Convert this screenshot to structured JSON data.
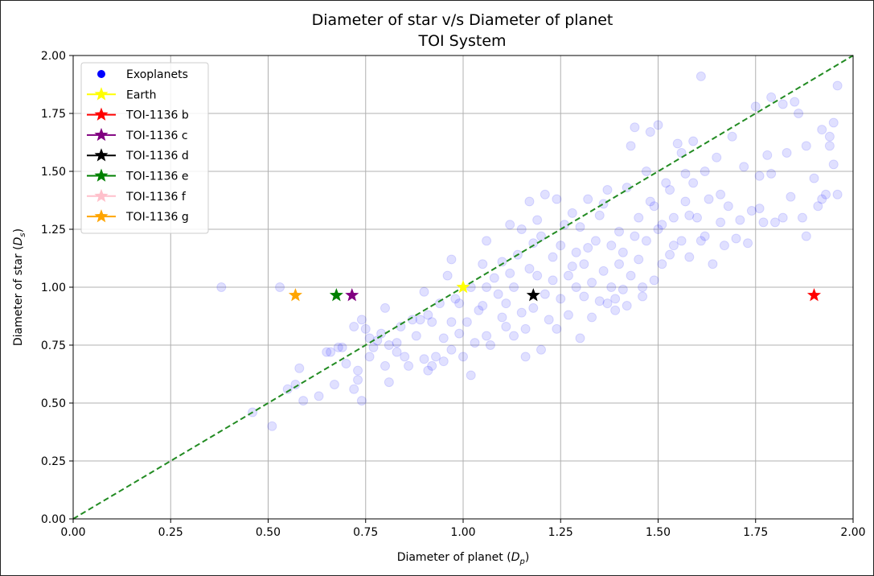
{
  "chart_data": {
    "type": "scatter",
    "title": "Diameter of star v/s Diameter of planet",
    "subtitle": "TOI System",
    "xlabel": "Diameter of planet ",
    "xlabel_symbol": "D",
    "xlabel_sub": "p",
    "ylabel": "Diameter of star ",
    "ylabel_symbol": "D",
    "ylabel_sub": "s",
    "xlim": [
      0,
      2
    ],
    "ylim": [
      0,
      2
    ],
    "xticks": [
      "0.00",
      "0.25",
      "0.50",
      "0.75",
      "1.00",
      "1.25",
      "1.50",
      "1.75",
      "2.00"
    ],
    "yticks": [
      "0.00",
      "0.25",
      "0.50",
      "0.75",
      "1.00",
      "1.25",
      "1.50",
      "1.75",
      "2.00"
    ],
    "grid": true,
    "legend_position": "top-left",
    "reference_line": {
      "x": [
        0,
        2
      ],
      "y": [
        0,
        2
      ],
      "color": "#228b22",
      "style": "dashed"
    },
    "series": [
      {
        "name": "Exoplanets",
        "marker": "circle",
        "color": "#0000ff",
        "opacity": 0.12,
        "points": [
          [
            0.38,
            1.0
          ],
          [
            0.46,
            0.46
          ],
          [
            0.51,
            0.4
          ],
          [
            0.53,
            1.0
          ],
          [
            0.55,
            0.56
          ],
          [
            0.57,
            0.58
          ],
          [
            0.58,
            0.65
          ],
          [
            0.59,
            0.51
          ],
          [
            0.63,
            0.53
          ],
          [
            0.65,
            0.72
          ],
          [
            0.66,
            0.72
          ],
          [
            0.67,
            0.58
          ],
          [
            0.68,
            0.74
          ],
          [
            0.69,
            0.74
          ],
          [
            0.7,
            0.67
          ],
          [
            0.72,
            0.83
          ],
          [
            0.72,
            0.56
          ],
          [
            0.73,
            0.64
          ],
          [
            0.73,
            0.6
          ],
          [
            0.74,
            0.51
          ],
          [
            0.74,
            0.86
          ],
          [
            0.75,
            0.82
          ],
          [
            0.76,
            0.7
          ],
          [
            0.76,
            0.78
          ],
          [
            0.77,
            0.74
          ],
          [
            0.78,
            0.77
          ],
          [
            0.79,
            0.8
          ],
          [
            0.8,
            0.91
          ],
          [
            0.8,
            0.66
          ],
          [
            0.81,
            0.59
          ],
          [
            0.81,
            0.75
          ],
          [
            0.83,
            0.76
          ],
          [
            0.83,
            0.72
          ],
          [
            0.84,
            0.83
          ],
          [
            0.85,
            0.7
          ],
          [
            0.86,
            0.66
          ],
          [
            0.87,
            0.86
          ],
          [
            0.88,
            0.79
          ],
          [
            0.89,
            0.86
          ],
          [
            0.9,
            0.69
          ],
          [
            0.91,
            0.64
          ],
          [
            0.91,
            0.88
          ],
          [
            0.92,
            0.85
          ],
          [
            0.93,
            0.7
          ],
          [
            0.94,
            0.93
          ],
          [
            0.95,
            0.78
          ],
          [
            0.95,
            0.68
          ],
          [
            0.96,
            1.05
          ],
          [
            0.97,
            0.73
          ],
          [
            0.97,
            0.85
          ],
          [
            0.98,
            0.95
          ],
          [
            0.99,
            0.8
          ],
          [
            0.99,
            0.93
          ],
          [
            1.0,
            0.7
          ],
          [
            1.01,
            0.85
          ],
          [
            1.02,
            1.0
          ],
          [
            1.03,
            0.76
          ],
          [
            1.04,
            0.9
          ],
          [
            1.05,
            1.1
          ],
          [
            1.05,
            0.92
          ],
          [
            1.06,
            0.79
          ],
          [
            1.06,
            1.2
          ],
          [
            1.07,
            0.75
          ],
          [
            1.08,
            1.04
          ],
          [
            1.09,
            0.97
          ],
          [
            1.1,
            0.87
          ],
          [
            1.1,
            1.11
          ],
          [
            1.11,
            0.83
          ],
          [
            1.11,
            0.93
          ],
          [
            1.12,
            1.27
          ],
          [
            1.13,
            1.0
          ],
          [
            1.13,
            0.79
          ],
          [
            1.14,
            1.14
          ],
          [
            1.15,
            0.89
          ],
          [
            1.15,
            1.25
          ],
          [
            1.16,
            0.82
          ],
          [
            1.17,
            1.08
          ],
          [
            1.17,
            1.37
          ],
          [
            1.18,
            0.91
          ],
          [
            1.18,
            1.19
          ],
          [
            1.19,
            1.05
          ],
          [
            1.2,
            0.73
          ],
          [
            1.2,
            1.22
          ],
          [
            1.21,
            0.97
          ],
          [
            1.21,
            1.4
          ],
          [
            1.22,
            0.86
          ],
          [
            1.23,
            1.13
          ],
          [
            1.23,
            1.03
          ],
          [
            1.24,
            1.38
          ],
          [
            1.25,
            0.95
          ],
          [
            1.25,
            1.18
          ],
          [
            1.26,
            1.27
          ],
          [
            1.27,
            0.88
          ],
          [
            1.27,
            1.05
          ],
          [
            1.28,
            1.32
          ],
          [
            1.29,
            1.0
          ],
          [
            1.29,
            1.15
          ],
          [
            1.3,
            0.78
          ],
          [
            1.3,
            1.26
          ],
          [
            1.31,
            0.96
          ],
          [
            1.31,
            1.1
          ],
          [
            1.32,
            1.38
          ],
          [
            1.33,
            1.02
          ],
          [
            1.33,
            0.87
          ],
          [
            1.34,
            1.2
          ],
          [
            1.35,
            0.94
          ],
          [
            1.35,
            1.31
          ],
          [
            1.36,
            1.07
          ],
          [
            1.37,
            0.93
          ],
          [
            1.37,
            1.42
          ],
          [
            1.38,
            1.0
          ],
          [
            1.38,
            1.18
          ],
          [
            1.39,
            0.9
          ],
          [
            1.4,
            1.24
          ],
          [
            1.4,
            1.1
          ],
          [
            1.41,
            0.99
          ],
          [
            1.42,
            1.43
          ],
          [
            1.42,
            0.92
          ],
          [
            1.43,
            1.61
          ],
          [
            1.43,
            1.05
          ],
          [
            1.44,
            1.69
          ],
          [
            1.45,
            1.3
          ],
          [
            1.45,
            1.12
          ],
          [
            1.46,
            0.96
          ],
          [
            1.47,
            1.5
          ],
          [
            1.47,
            1.2
          ],
          [
            1.48,
            1.67
          ],
          [
            1.49,
            1.03
          ],
          [
            1.49,
            1.35
          ],
          [
            1.5,
            1.7
          ],
          [
            1.5,
            1.25
          ],
          [
            1.51,
            1.1
          ],
          [
            1.52,
            1.45
          ],
          [
            1.53,
            1.42
          ],
          [
            1.53,
            1.14
          ],
          [
            1.54,
            1.3
          ],
          [
            1.55,
            1.62
          ],
          [
            1.56,
            1.2
          ],
          [
            1.56,
            1.58
          ],
          [
            1.57,
            1.49
          ],
          [
            1.58,
            1.31
          ],
          [
            1.58,
            1.13
          ],
          [
            1.59,
            1.45
          ],
          [
            1.6,
            1.3
          ],
          [
            1.61,
            1.91
          ],
          [
            1.61,
            1.2
          ],
          [
            1.62,
            1.5
          ],
          [
            1.63,
            1.38
          ],
          [
            1.64,
            1.1
          ],
          [
            1.65,
            1.56
          ],
          [
            1.66,
            1.28
          ],
          [
            1.67,
            1.18
          ],
          [
            1.68,
            1.35
          ],
          [
            1.69,
            1.65
          ],
          [
            1.7,
            1.21
          ],
          [
            1.72,
            1.52
          ],
          [
            1.73,
            1.19
          ],
          [
            1.74,
            1.33
          ],
          [
            1.75,
            1.78
          ],
          [
            1.76,
            1.48
          ],
          [
            1.77,
            1.28
          ],
          [
            1.78,
            1.57
          ],
          [
            1.79,
            1.82
          ],
          [
            1.8,
            1.28
          ],
          [
            1.82,
            1.3
          ],
          [
            1.82,
            1.79
          ],
          [
            1.84,
            1.39
          ],
          [
            1.85,
            1.8
          ],
          [
            1.86,
            1.75
          ],
          [
            1.87,
            1.3
          ],
          [
            1.88,
            1.61
          ],
          [
            1.9,
            1.47
          ],
          [
            1.91,
            1.35
          ],
          [
            1.92,
            1.68
          ],
          [
            1.93,
            1.4
          ],
          [
            1.94,
            1.61
          ],
          [
            1.95,
            1.71
          ],
          [
            1.95,
            1.53
          ],
          [
            1.96,
            1.87
          ],
          [
            1.96,
            1.4
          ],
          [
            0.9,
            0.98
          ],
          [
            0.92,
            0.66
          ],
          [
            0.97,
            1.12
          ],
          [
            1.02,
            0.62
          ],
          [
            1.06,
            1.0
          ],
          [
            1.12,
            1.06
          ],
          [
            1.16,
            0.7
          ],
          [
            1.19,
            1.29
          ],
          [
            1.24,
            0.82
          ],
          [
            1.28,
            1.09
          ],
          [
            1.32,
            1.17
          ],
          [
            1.36,
            1.36
          ],
          [
            1.39,
            0.95
          ],
          [
            1.41,
            1.15
          ],
          [
            1.44,
            1.22
          ],
          [
            1.46,
            1.0
          ],
          [
            1.48,
            1.37
          ],
          [
            1.51,
            1.27
          ],
          [
            1.54,
            1.18
          ],
          [
            1.57,
            1.37
          ],
          [
            1.59,
            1.63
          ],
          [
            1.62,
            1.22
          ],
          [
            1.66,
            1.4
          ],
          [
            1.71,
            1.29
          ],
          [
            1.76,
            1.34
          ],
          [
            1.79,
            1.49
          ],
          [
            1.83,
            1.58
          ],
          [
            1.88,
            1.22
          ],
          [
            1.92,
            1.38
          ],
          [
            1.94,
            1.65
          ]
        ]
      },
      {
        "name": "Earth",
        "marker": "star",
        "color": "#ffff00",
        "points": [
          [
            1.0,
            1.0
          ]
        ]
      },
      {
        "name": "TOI-1136 b",
        "marker": "star",
        "color": "#ff0000",
        "points": [
          [
            1.9,
            0.965
          ]
        ]
      },
      {
        "name": "TOI-1136 c",
        "marker": "star",
        "color": "#800080",
        "points": [
          [
            0.715,
            0.965
          ]
        ]
      },
      {
        "name": "TOI-1136 d",
        "marker": "star",
        "color": "#000000",
        "points": [
          [
            1.18,
            0.965
          ]
        ]
      },
      {
        "name": "TOI-1136 e",
        "marker": "star",
        "color": "#008000",
        "points": [
          [
            0.675,
            0.965
          ]
        ]
      },
      {
        "name": "TOI-1136 f",
        "marker": "star",
        "color": "#ffc0cb",
        "points": []
      },
      {
        "name": "TOI-1136 g",
        "marker": "star",
        "color": "#ffa500",
        "points": [
          [
            0.57,
            0.965
          ]
        ]
      }
    ]
  }
}
